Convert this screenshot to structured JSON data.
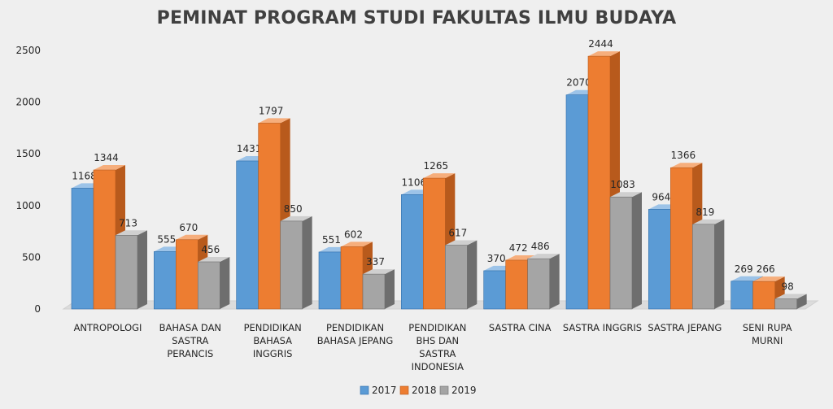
{
  "chart_data": {
    "type": "bar",
    "title": "PEMINAT PROGRAM STUDI FAKULTAS ILMU BUDAYA",
    "categories": [
      [
        "ANTROPOLOGI"
      ],
      [
        "BAHASA DAN",
        "SASTRA",
        "PERANCIS"
      ],
      [
        "PENDIDIKAN",
        "BAHASA",
        "INGGRIS"
      ],
      [
        "PENDIDIKAN",
        "BAHASA JEPANG"
      ],
      [
        "PENDIDIKAN",
        "BHS DAN",
        "SASTRA",
        "INDONESIA"
      ],
      [
        "SASTRA CINA"
      ],
      [
        "SASTRA INGGRIS"
      ],
      [
        "SASTRA JEPANG"
      ],
      [
        "SENI RUPA",
        "MURNI"
      ]
    ],
    "series": [
      {
        "name": "2017",
        "values": [
          1168,
          555,
          1431,
          551,
          1106,
          370,
          2070,
          964,
          269
        ]
      },
      {
        "name": "2018",
        "values": [
          1344,
          670,
          1797,
          602,
          1265,
          472,
          2444,
          1366,
          266
        ]
      },
      {
        "name": "2019",
        "values": [
          713,
          456,
          850,
          337,
          617,
          486,
          1083,
          819,
          98
        ]
      }
    ],
    "ylim": [
      0,
      2500
    ],
    "yticks": [
      0,
      500,
      1000,
      1500,
      2000,
      2500
    ],
    "xlabel": "",
    "ylabel": "",
    "grid": false,
    "legend_position": "bottom",
    "colors": {
      "2017": {
        "front": "#5b9bd5",
        "side": "#2e6ca8",
        "top": "#9cc3e8"
      },
      "2018": {
        "front": "#ed7d31",
        "side": "#b85a1c",
        "top": "#f6ae7c"
      },
      "2019": {
        "front": "#a5a5a5",
        "side": "#6e6e6e",
        "top": "#cfcfcf"
      }
    }
  }
}
